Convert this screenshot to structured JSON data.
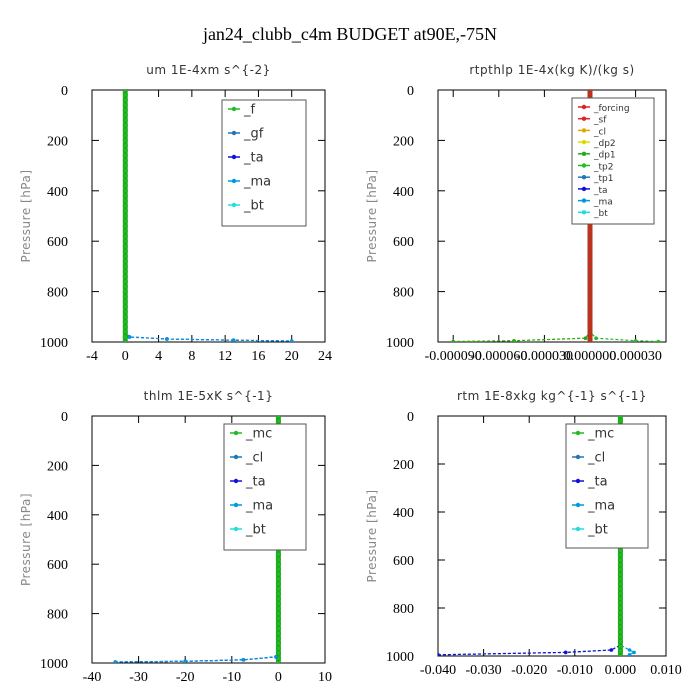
{
  "figure": {
    "title": "jan24_clubb_c4m  BUDGET at90E,-75N"
  },
  "chart_data": [
    {
      "type": "line",
      "title": "um  1E-4xm s^{-2}",
      "ylabel": "Pressure [hPa]",
      "xlabel": "",
      "xlim": [
        -4,
        24
      ],
      "ylim": [
        1000,
        0
      ],
      "xticks": [
        -4,
        0,
        4,
        8,
        12,
        16,
        20,
        24
      ],
      "xtick_labels": [
        "-4",
        "0",
        "4",
        "8",
        "12",
        "16",
        "20",
        "24"
      ],
      "yticks": [
        0,
        200,
        400,
        600,
        800,
        1000
      ],
      "ytick_labels": [
        "0",
        "200",
        "400",
        "600",
        "800",
        "1000"
      ],
      "grid": false,
      "legend_position": "top-right",
      "series": [
        {
          "name": "_f",
          "color": "#22bb22",
          "x": [
            0,
            0,
            0,
            0,
            0
          ],
          "y": [
            0,
            250,
            500,
            750,
            1000
          ]
        },
        {
          "name": "_gf",
          "color": "#1f77b4",
          "x": [
            0,
            0,
            0,
            0,
            0
          ],
          "y": [
            0,
            250,
            500,
            750,
            1000
          ]
        },
        {
          "name": "_ta",
          "color": "#1111dd",
          "x": [
            0,
            0,
            0.5,
            5,
            13,
            20
          ],
          "y": [
            0,
            960,
            980,
            988,
            993,
            996
          ]
        },
        {
          "name": "_ma",
          "color": "#0099dd",
          "x": [
            0,
            0,
            0.5,
            5,
            13,
            20
          ],
          "y": [
            0,
            960,
            980,
            988,
            993,
            996
          ]
        },
        {
          "name": "_bt",
          "color": "#22dddd",
          "x": [
            0,
            0,
            0,
            0,
            0
          ],
          "y": [
            0,
            250,
            500,
            750,
            1000
          ]
        }
      ]
    },
    {
      "type": "line",
      "title": "rtpthlp  1E-4x(kg K)/(kg s)",
      "ylabel": "Pressure [hPa]",
      "xlabel": "",
      "xlim": [
        -0.0001,
        5e-05
      ],
      "ylim": [
        1000,
        0
      ],
      "xticks": [
        -9e-05,
        -6e-05,
        -3e-05,
        0,
        3e-05
      ],
      "xtick_labels": [
        "-0.000090",
        "-0.000060",
        "-0.000030",
        "0.000000",
        "0.000030"
      ],
      "yticks": [
        0,
        200,
        400,
        600,
        800,
        1000
      ],
      "ytick_labels": [
        "0",
        "200",
        "400",
        "600",
        "800",
        "1000"
      ],
      "grid": false,
      "legend_position": "top-right",
      "series": [
        {
          "name": "_forcing",
          "color": "#dd2222",
          "x": [
            0,
            0,
            0,
            0,
            0
          ],
          "y": [
            0,
            250,
            500,
            750,
            1000
          ]
        },
        {
          "name": "_sf",
          "color": "#dd2222",
          "x": [
            0,
            0,
            0,
            0,
            0
          ],
          "y": [
            0,
            250,
            500,
            750,
            1000
          ]
        },
        {
          "name": "_cl",
          "color": "#ddaa00",
          "x": [
            0,
            0,
            0,
            0,
            0
          ],
          "y": [
            0,
            250,
            500,
            750,
            1000
          ]
        },
        {
          "name": "_dp2",
          "color": "#dddd00",
          "x": [
            0,
            0,
            -3e-06,
            -5e-05,
            -9e-05
          ],
          "y": [
            0,
            960,
            985,
            995,
            998
          ]
        },
        {
          "name": "_dp1",
          "color": "#22aa22",
          "x": [
            0,
            0,
            -3e-06,
            -5e-05,
            -9e-05
          ],
          "y": [
            0,
            960,
            985,
            995,
            998
          ]
        },
        {
          "name": "_tp2",
          "color": "#22bb22",
          "x": [
            0,
            0,
            4e-06,
            3e-05,
            4.5e-05
          ],
          "y": [
            0,
            960,
            985,
            995,
            998
          ]
        },
        {
          "name": "_tp1",
          "color": "#1f77b4",
          "x": [
            0,
            0,
            0,
            0,
            0
          ],
          "y": [
            0,
            250,
            500,
            750,
            1000
          ]
        },
        {
          "name": "_ta",
          "color": "#1111dd",
          "x": [
            0,
            0,
            0,
            0,
            0
          ],
          "y": [
            0,
            250,
            500,
            750,
            1000
          ]
        },
        {
          "name": "_ma",
          "color": "#0099dd",
          "x": [
            0,
            0,
            0,
            0,
            0
          ],
          "y": [
            0,
            250,
            500,
            750,
            1000
          ]
        },
        {
          "name": "_bt",
          "color": "#22dddd",
          "x": [
            0,
            0,
            0,
            0,
            0
          ],
          "y": [
            0,
            250,
            500,
            750,
            1000
          ]
        }
      ]
    },
    {
      "type": "line",
      "title": "thlm  1E-5xK s^{-1}",
      "ylabel": "Pressure [hPa]",
      "xlabel": "",
      "xlim": [
        -40,
        10
      ],
      "ylim": [
        1000,
        0
      ],
      "xticks": [
        -40,
        -30,
        -20,
        -10,
        0,
        10
      ],
      "xtick_labels": [
        "-40",
        "-30",
        "-20",
        "-10",
        "0",
        "10"
      ],
      "yticks": [
        0,
        200,
        400,
        600,
        800,
        1000
      ],
      "ytick_labels": [
        "0",
        "200",
        "400",
        "600",
        "800",
        "1000"
      ],
      "grid": false,
      "legend_position": "top-right",
      "series": [
        {
          "name": "_mc",
          "color": "#22bb22",
          "x": [
            0,
            0,
            0,
            0,
            0
          ],
          "y": [
            0,
            250,
            500,
            750,
            1000
          ]
        },
        {
          "name": "_cl",
          "color": "#1f77b4",
          "x": [
            0,
            0,
            -0.5,
            -7.5,
            -20,
            -35
          ],
          "y": [
            0,
            960,
            975,
            987,
            993,
            996
          ]
        },
        {
          "name": "_ta",
          "color": "#1111dd",
          "x": [
            0,
            0,
            -0.5,
            -7.5,
            -20,
            -35
          ],
          "y": [
            0,
            960,
            975,
            987,
            993,
            996
          ]
        },
        {
          "name": "_ma",
          "color": "#0099dd",
          "x": [
            0,
            0,
            -0.5,
            -7.5,
            -20,
            -35
          ],
          "y": [
            0,
            960,
            975,
            987,
            993,
            996
          ]
        },
        {
          "name": "_bt",
          "color": "#22dddd",
          "x": [
            0,
            0,
            0,
            0,
            0
          ],
          "y": [
            0,
            250,
            500,
            750,
            1000
          ]
        }
      ]
    },
    {
      "type": "line",
      "title": "rtm  1E-8xkg kg^{-1} s^{-1}",
      "ylabel": "Pressure [hPa]",
      "xlabel": "",
      "xlim": [
        -0.04,
        0.01
      ],
      "ylim": [
        1000,
        0
      ],
      "xticks": [
        -0.04,
        -0.03,
        -0.02,
        -0.01,
        0,
        0.01
      ],
      "xtick_labels": [
        "-0.040",
        "-0.030",
        "-0.020",
        "-0.010",
        "0.000",
        "0.010"
      ],
      "yticks": [
        0,
        200,
        400,
        600,
        800,
        1000
      ],
      "ytick_labels": [
        "0",
        "200",
        "400",
        "600",
        "800",
        "1000"
      ],
      "grid": false,
      "legend_position": "top-right",
      "series": [
        {
          "name": "_mc",
          "color": "#22bb22",
          "x": [
            0,
            0,
            0,
            0,
            0
          ],
          "y": [
            0,
            250,
            500,
            750,
            1000
          ]
        },
        {
          "name": "_cl",
          "color": "#1f77b4",
          "x": [
            0,
            0,
            -0.002,
            -0.012,
            -0.04
          ],
          "y": [
            0,
            955,
            975,
            985,
            995
          ]
        },
        {
          "name": "_ta",
          "color": "#1111dd",
          "x": [
            0,
            0,
            -0.002,
            -0.012,
            -0.04
          ],
          "y": [
            0,
            955,
            975,
            985,
            995
          ]
        },
        {
          "name": "_ma",
          "color": "#0099dd",
          "x": [
            0,
            0,
            0.002,
            0.003,
            0.002
          ],
          "y": [
            0,
            955,
            975,
            985,
            995
          ]
        },
        {
          "name": "_bt",
          "color": "#22dddd",
          "x": [
            0,
            0,
            0,
            0,
            0
          ],
          "y": [
            0,
            250,
            500,
            750,
            1000
          ]
        }
      ]
    }
  ]
}
